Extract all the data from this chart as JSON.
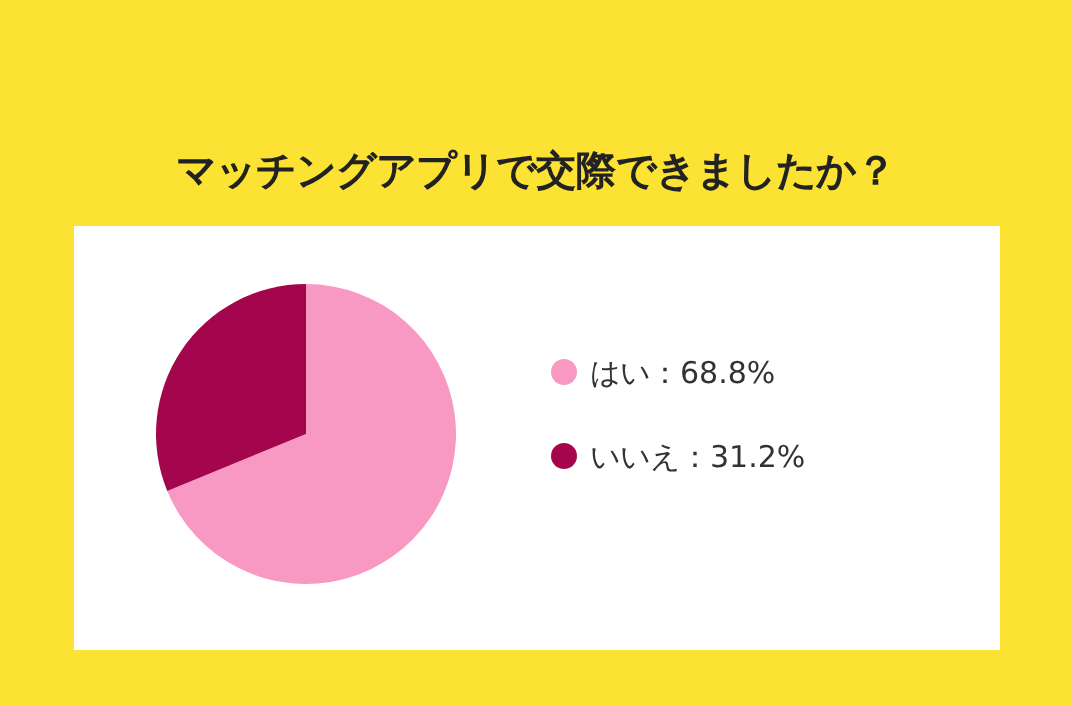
{
  "chart_data": {
    "type": "pie",
    "title": "マッチングアプリで交際できましたか？",
    "categories": [
      "はい",
      "いいえ"
    ],
    "values": [
      68.8,
      31.2
    ],
    "colors": [
      "#f799c3",
      "#a3064c"
    ],
    "value_labels": [
      "68.8%",
      "31.2%"
    ],
    "legend": "right"
  }
}
